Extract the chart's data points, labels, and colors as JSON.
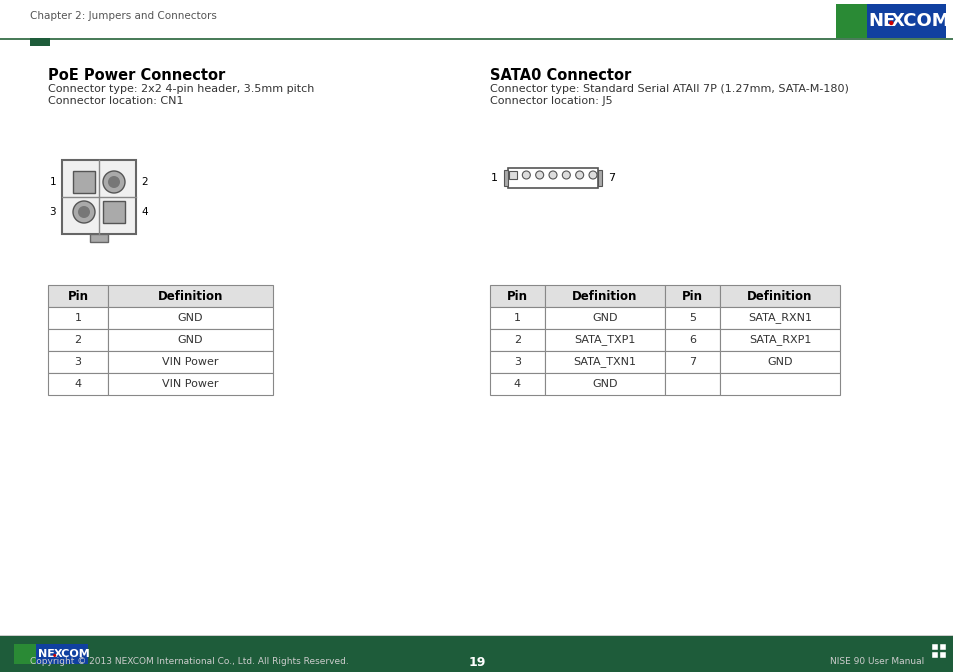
{
  "bg_color": "#ffffff",
  "top_bar_color": "#1e5c3a",
  "accent_green": "#4a7c59",
  "page_number": "19",
  "top_text": "Chapter 2: Jumpers and Connectors",
  "footer_text_left": "Copyright © 2013 NEXCOM International Co., Ltd. All Rights Reserved.",
  "footer_text_right": "NISE 90 User Manual",
  "section1_title": "PoE Power Connector",
  "section1_type": "Connector type: 2x2 4-pin header, 3.5mm pitch",
  "section1_loc": "Connector location: CN1",
  "section2_title": "SATA0 Connector",
  "section2_type": "Connector type: Standard Serial ATAII 7P (1.27mm, SATA-M-180)",
  "section2_loc": "Connector location: J5",
  "poe_table_headers": [
    "Pin",
    "Definition"
  ],
  "poe_table_rows": [
    [
      "1",
      "GND"
    ],
    [
      "2",
      "GND"
    ],
    [
      "3",
      "VIN Power"
    ],
    [
      "4",
      "VIN Power"
    ]
  ],
  "sata_table_headers": [
    "Pin",
    "Definition",
    "Pin",
    "Definition"
  ],
  "sata_table_rows": [
    [
      "1",
      "GND",
      "5",
      "SATA_RXN1"
    ],
    [
      "2",
      "SATA_TXP1",
      "6",
      "SATA_RXP1"
    ],
    [
      "3",
      "SATA_TXN1",
      "7",
      "GND"
    ],
    [
      "4",
      "GND",
      "",
      ""
    ]
  ],
  "table_header_bg": "#e0e0e0",
  "table_border": "#888888",
  "nexcom_green": "#2a8a35",
  "nexcom_blue": "#1040a0",
  "nexcom_red": "#cc0000"
}
